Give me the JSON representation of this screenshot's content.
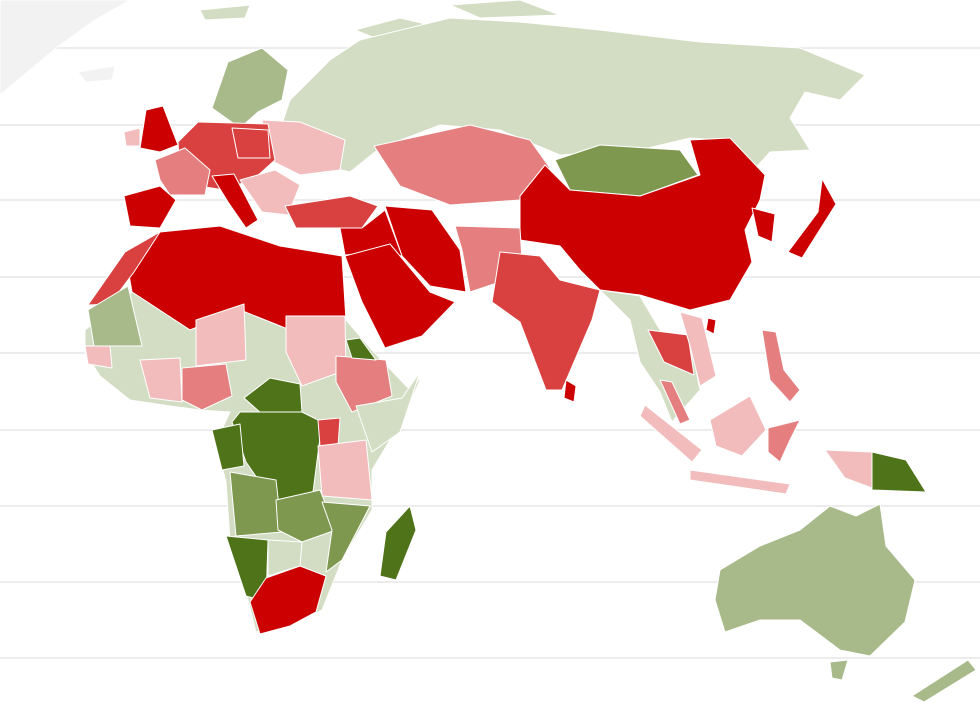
{
  "map": {
    "type": "choropleth",
    "background": "#ffffff",
    "gridline_color": "#e6e6e6",
    "palette": {
      "red_4": "#cc0000",
      "red_3": "#d94040",
      "red_2": "#e57f7f",
      "red_1": "#f2bcbc",
      "green_1": "#d3ddc4",
      "green_2": "#a8b98a",
      "green_3": "#7f9850",
      "green_4": "#4f7319",
      "no_data": "#f2f2f2",
      "island_grey": "#dcdcdc"
    }
  }
}
